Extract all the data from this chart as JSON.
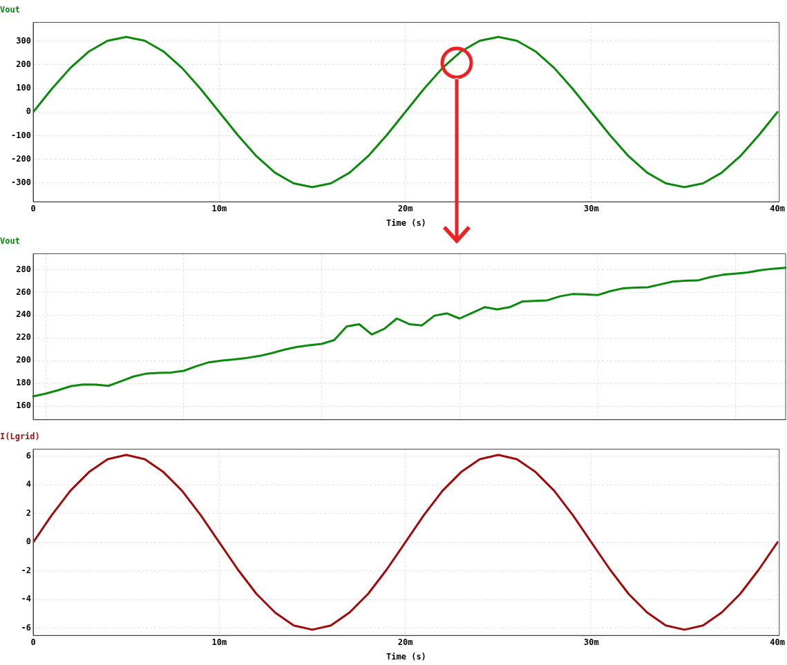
{
  "chart_data": [
    {
      "type": "line",
      "title": "Vout",
      "xlabel": "Time (s)",
      "grid": true,
      "marker": "none",
      "line_style": "solid",
      "x": [
        0,
        1,
        2,
        3,
        4,
        5,
        6,
        7,
        8,
        9,
        10,
        11,
        12,
        13,
        14,
        15,
        16,
        17,
        18,
        19,
        20,
        21,
        22,
        23,
        24,
        25,
        26,
        27,
        28,
        29,
        30,
        31,
        32,
        33,
        34,
        35,
        36,
        37,
        38,
        39,
        40
      ],
      "xlim": [
        0,
        40.1
      ],
      "xticks": [
        0,
        {
          "value": 10,
          "label": "10m"
        },
        {
          "value": 20,
          "label": "20m"
        },
        {
          "value": 30,
          "label": "30m"
        },
        {
          "value": 40,
          "label": "40m"
        }
      ],
      "ylim": [
        -380,
        380
      ],
      "yticks": [
        -300,
        -200,
        -100,
        0,
        100,
        200,
        300
      ],
      "series": [
        {
          "color": "#0a8a0a",
          "values": [
            0,
            98,
            187,
            257,
            302,
            318,
            302,
            257,
            187,
            98,
            0,
            -98,
            -187,
            -257,
            -302,
            -318,
            -302,
            -257,
            -187,
            -98,
            0,
            98,
            187,
            257,
            302,
            318,
            302,
            257,
            187,
            98,
            0,
            -98,
            -187,
            -257,
            -302,
            -318,
            -302,
            -257,
            -187,
            -98,
            0
          ]
        }
      ]
    },
    {
      "type": "line",
      "title": "Vout",
      "grid": true,
      "marker": "none",
      "line_style": "solid",
      "tick_labels": "y",
      "categories": [
        null,
        null,
        null,
        null,
        null,
        null,
        null,
        null,
        null,
        null,
        null,
        null,
        null,
        null,
        null,
        null,
        null,
        null,
        null,
        null,
        null,
        null,
        null,
        null,
        null,
        null,
        null,
        null,
        null,
        null,
        null,
        null,
        null,
        null,
        null,
        null,
        null,
        null,
        null,
        null,
        null,
        null,
        null,
        null,
        null,
        null,
        null,
        null,
        null,
        null,
        null,
        null,
        null,
        null,
        null,
        null,
        null,
        null,
        null,
        null,
        null
      ],
      "ylim": [
        148,
        294
      ],
      "yticks": [
        160,
        180,
        200,
        220,
        240,
        260,
        280
      ],
      "series": [
        {
          "color": "#0a8a0a",
          "values": [
            168.5,
            171,
            174,
            177.5,
            179,
            178.8,
            177.8,
            181.8,
            186,
            188.5,
            189.2,
            189.5,
            191,
            195,
            198.5,
            200,
            201,
            202.3,
            204,
            206.5,
            209.5,
            212,
            213.5,
            214.7,
            218,
            230,
            232,
            223,
            228,
            237,
            232,
            231,
            239.5,
            241.5,
            237,
            242,
            247,
            245,
            247,
            252,
            252.5,
            253,
            256.5,
            258.5,
            258.3,
            257.6,
            261,
            263.5,
            264.2,
            264.5,
            267,
            269.5,
            270.3,
            270.5,
            273.5,
            275.5,
            276.5,
            277.5,
            279.5,
            280.8,
            281.7
          ]
        }
      ]
    },
    {
      "type": "line",
      "title": "I(Lgrid)",
      "xlabel": "Time (s)",
      "grid": true,
      "marker": "none",
      "line_style": "solid",
      "x": [
        0,
        1,
        2,
        3,
        4,
        5,
        6,
        7,
        8,
        9,
        10,
        11,
        12,
        13,
        14,
        15,
        16,
        17,
        18,
        19,
        20,
        21,
        22,
        23,
        24,
        25,
        26,
        27,
        28,
        29,
        30,
        31,
        32,
        33,
        34,
        35,
        36,
        37,
        38,
        39,
        40
      ],
      "xlim": [
        0,
        40.1
      ],
      "xticks": [
        0,
        {
          "value": 10,
          "label": "10m"
        },
        {
          "value": 20,
          "label": "20m"
        },
        {
          "value": 30,
          "label": "30m"
        },
        {
          "value": 40,
          "label": "40m"
        }
      ],
      "ylim": [
        -6.5,
        6.5
      ],
      "yticks": [
        -6,
        -4,
        -2,
        0,
        2,
        4,
        6
      ],
      "series": [
        {
          "color": "#a00a0a",
          "values": [
            0,
            1.9,
            3.6,
            4.9,
            5.8,
            6.1,
            5.8,
            4.9,
            3.6,
            1.9,
            0,
            -1.9,
            -3.6,
            -4.9,
            -5.8,
            -6.1,
            -5.8,
            -4.9,
            -3.6,
            -1.9,
            0,
            1.9,
            3.6,
            4.9,
            5.8,
            6.1,
            5.8,
            4.9,
            3.6,
            1.9,
            0,
            -1.9,
            -3.6,
            -4.9,
            -5.8,
            -6.1,
            -5.8,
            -4.9,
            -3.6,
            -1.9,
            0
          ]
        }
      ]
    }
  ]
}
